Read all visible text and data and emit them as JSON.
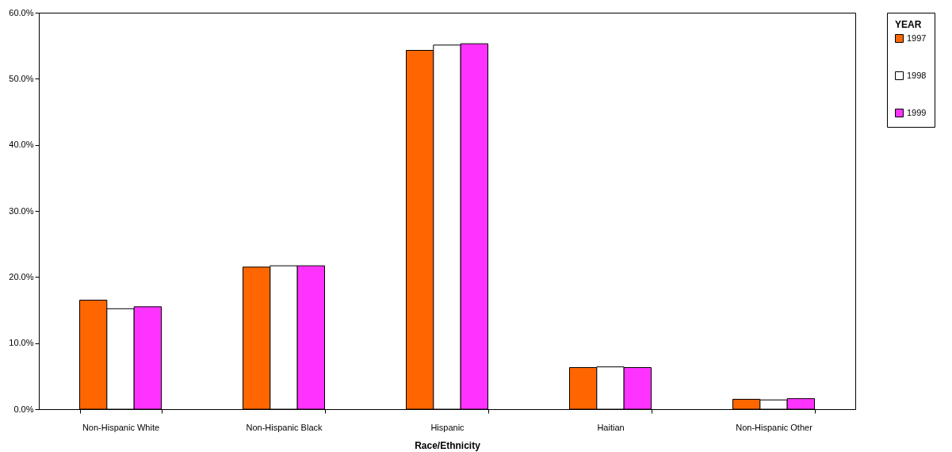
{
  "chart_data": {
    "type": "bar",
    "xlabel": "Race/Ethnicity",
    "legend_title": "YEAR",
    "legend": "right",
    "categories": [
      "Non-Hispanic White",
      "Non-Hispanic Black",
      "Hispanic",
      "Haitian",
      "Non-Hispanic Other"
    ],
    "series": [
      {
        "name": "1997",
        "color": "#ff6600",
        "values": [
          16.5,
          21.5,
          54.3,
          6.3,
          1.5
        ]
      },
      {
        "name": "1998",
        "color": "#ffffff",
        "values": [
          15.2,
          21.7,
          55.1,
          6.4,
          1.4
        ]
      },
      {
        "name": "1999",
        "color": "#ff33ff",
        "values": [
          15.5,
          21.7,
          55.3,
          6.3,
          1.6
        ]
      }
    ],
    "ylim": [
      0,
      60
    ],
    "yticks": [
      {
        "value": 0,
        "label": "0.0%"
      },
      {
        "value": 10,
        "label": "10.0%"
      },
      {
        "value": 20,
        "label": "20.0%"
      },
      {
        "value": 30,
        "label": "30.0%"
      },
      {
        "value": 40,
        "label": "40.0%"
      },
      {
        "value": 50,
        "label": "50.0%"
      },
      {
        "value": 60,
        "label": "60.0%"
      }
    ],
    "grid": false
  }
}
